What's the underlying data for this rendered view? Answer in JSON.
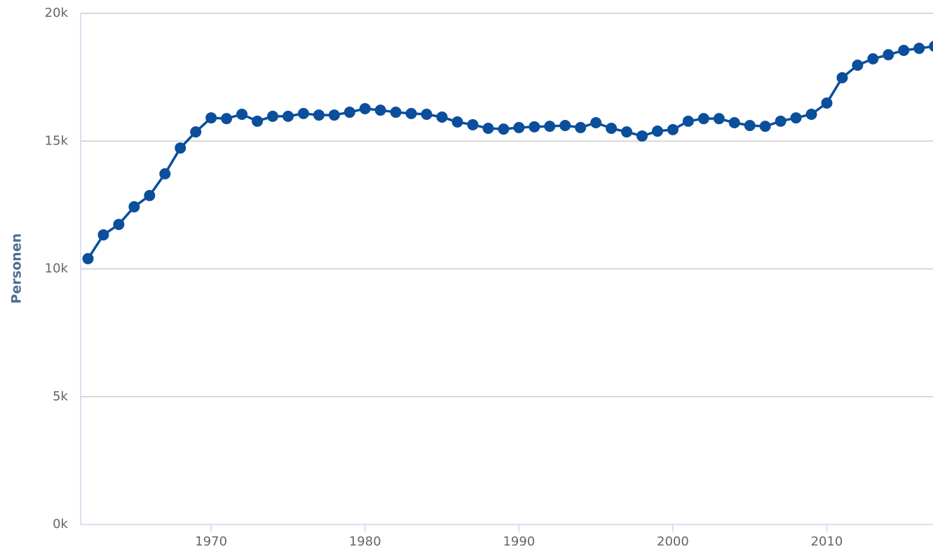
{
  "chart_data": {
    "type": "line",
    "y_label": "Personen",
    "x": [
      1962,
      1963,
      1964,
      1965,
      1966,
      1967,
      1968,
      1969,
      1970,
      1971,
      1972,
      1973,
      1974,
      1975,
      1976,
      1977,
      1978,
      1979,
      1980,
      1981,
      1982,
      1983,
      1984,
      1985,
      1986,
      1987,
      1988,
      1989,
      1990,
      1991,
      1992,
      1993,
      1994,
      1995,
      1996,
      1997,
      1998,
      1999,
      2000,
      2001,
      2002,
      2003,
      2004,
      2005,
      2006,
      2007,
      2008,
      2009,
      2010,
      2011,
      2012,
      2013,
      2014,
      2015,
      2016,
      2017
    ],
    "series": [
      {
        "color": "#0b4f9c",
        "values": [
          10400,
          11330,
          11740,
          12430,
          12870,
          13720,
          14730,
          15360,
          15910,
          15880,
          16050,
          15780,
          15970,
          15970,
          16080,
          16020,
          16020,
          16130,
          16270,
          16210,
          16130,
          16080,
          16050,
          15940,
          15750,
          15640,
          15500,
          15470,
          15530,
          15560,
          15580,
          15610,
          15530,
          15720,
          15500,
          15360,
          15200,
          15390,
          15450,
          15780,
          15880,
          15880,
          15720,
          15610,
          15580,
          15780,
          15910,
          16050,
          16490,
          17480,
          17970,
          18220,
          18380,
          18550,
          18630,
          18710
        ]
      }
    ],
    "xlim": [
      1961.52,
      2016.9
    ],
    "xticks": [
      1970,
      1980,
      1990,
      2000,
      2010
    ],
    "ylim": [
      0,
      20000
    ],
    "yticks": [
      {
        "value": 0,
        "label": "0k"
      },
      {
        "value": 5000,
        "label": "5k"
      },
      {
        "value": 10000,
        "label": "10k"
      },
      {
        "value": 15000,
        "label": "15k"
      },
      {
        "value": 20000,
        "label": "20k"
      }
    ],
    "grid": true
  }
}
